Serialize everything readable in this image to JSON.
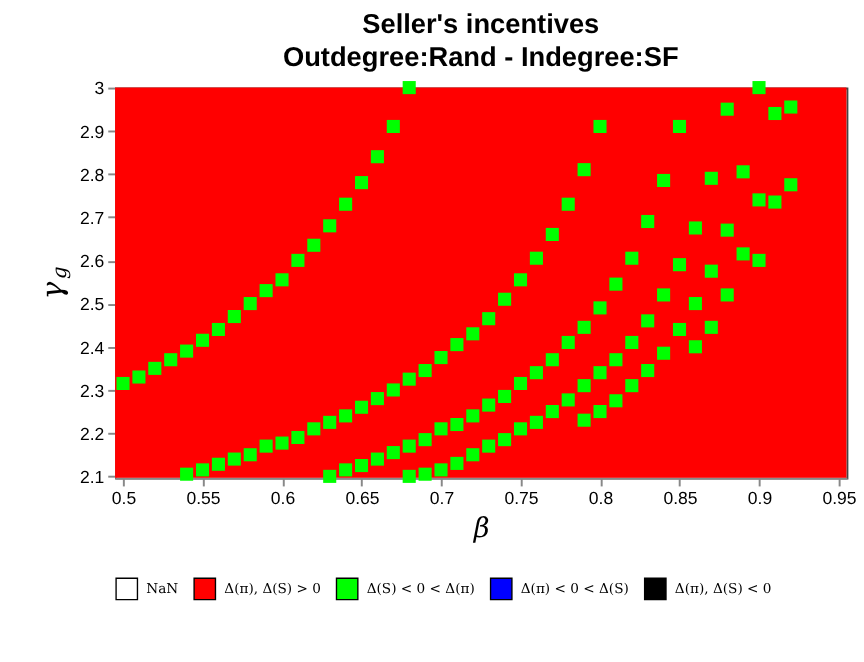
{
  "chart_data": {
    "type": "scatter",
    "title": "Seller's incentives",
    "subtitle": "Outdegree:Rand - Indegree:SF",
    "xlabel": "β",
    "ylabel": "γ$_{g}$",
    "xlim": [
      0.495,
      0.955
    ],
    "ylim": [
      2.097,
      3.0
    ],
    "xticks": [
      0.5,
      0.55,
      0.6,
      0.65,
      0.7,
      0.75,
      0.8,
      0.85,
      0.9,
      0.95
    ],
    "yticks": [
      2.1,
      2.2,
      2.3,
      2.4,
      2.5,
      2.6,
      2.7,
      2.8,
      2.9,
      3
    ],
    "marker": "square",
    "grid": false,
    "legend": "bottom",
    "bands": [
      {
        "axis": "x",
        "from": 0.495,
        "to": 0.955,
        "color": "#ff0000"
      }
    ],
    "series": [
      {
        "name": "NaN",
        "color": "#ffffff"
      },
      {
        "name": "Δ(π), Δ(S) > 0",
        "color": "#ff0000"
      },
      {
        "name": "Δ(S) < 0 < Δ(π)",
        "color": "#00ff00",
        "x": [
          0.5,
          0.51,
          0.52,
          0.53,
          0.54,
          0.55,
          0.56,
          0.57,
          0.58,
          0.59,
          0.6,
          0.61,
          0.62,
          0.63,
          0.64,
          0.65,
          0.66,
          0.67,
          0.68,
          0.54,
          0.55,
          0.56,
          0.57,
          0.58,
          0.59,
          0.6,
          0.61,
          0.62,
          0.63,
          0.64,
          0.65,
          0.66,
          0.67,
          0.68,
          0.69,
          0.7,
          0.71,
          0.72,
          0.73,
          0.74,
          0.75,
          0.76,
          0.77,
          0.78,
          0.79,
          0.8,
          0.63,
          0.64,
          0.65,
          0.66,
          0.67,
          0.68,
          0.69,
          0.7,
          0.71,
          0.72,
          0.73,
          0.74,
          0.75,
          0.76,
          0.77,
          0.78,
          0.79,
          0.8,
          0.81,
          0.82,
          0.83,
          0.84,
          0.85,
          0.68,
          0.69,
          0.7,
          0.71,
          0.72,
          0.73,
          0.74,
          0.75,
          0.76,
          0.77,
          0.78,
          0.79,
          0.8,
          0.81,
          0.82,
          0.83,
          0.84,
          0.85,
          0.79,
          0.8,
          0.81,
          0.82,
          0.83,
          0.84,
          0.85,
          0.86,
          0.86,
          0.87,
          0.87,
          0.88,
          0.89,
          0.9,
          0.86,
          0.87,
          0.88,
          0.88,
          0.89,
          0.9,
          0.91,
          0.91,
          0.92,
          0.92,
          0.9
        ],
        "values": [
          2.315,
          2.33,
          2.35,
          2.37,
          2.39,
          2.415,
          2.44,
          2.47,
          2.5,
          2.53,
          2.555,
          2.6,
          2.635,
          2.68,
          2.73,
          2.78,
          2.84,
          2.91,
          3.0,
          2.105,
          2.115,
          2.128,
          2.14,
          2.15,
          2.17,
          2.177,
          2.19,
          2.21,
          2.225,
          2.24,
          2.26,
          2.28,
          2.3,
          2.325,
          2.345,
          2.375,
          2.405,
          2.43,
          2.465,
          2.51,
          2.555,
          2.605,
          2.66,
          2.73,
          2.81,
          2.91,
          2.1,
          2.115,
          2.125,
          2.14,
          2.155,
          2.17,
          2.185,
          2.21,
          2.22,
          2.24,
          2.265,
          2.285,
          2.315,
          2.34,
          2.37,
          2.41,
          2.445,
          2.49,
          2.545,
          2.605,
          2.69,
          2.785,
          2.91,
          2.1,
          2.105,
          2.115,
          2.13,
          2.15,
          2.17,
          2.185,
          2.21,
          2.225,
          2.25,
          2.277,
          2.31,
          2.34,
          2.37,
          2.41,
          2.46,
          2.52,
          2.59,
          2.23,
          2.25,
          2.275,
          2.31,
          2.345,
          2.385,
          2.44,
          2.4,
          2.5,
          2.445,
          2.575,
          2.52,
          2.615,
          2.6,
          2.675,
          2.79,
          2.67,
          2.95,
          2.805,
          2.74,
          2.735,
          2.94,
          2.775,
          2.955,
          3.0
        ]
      },
      {
        "name": "Δ(π) < 0 < Δ(S)",
        "color": "#0000ff"
      },
      {
        "name": "Δ(π), Δ(S) < 0",
        "color": "#000000"
      }
    ]
  }
}
